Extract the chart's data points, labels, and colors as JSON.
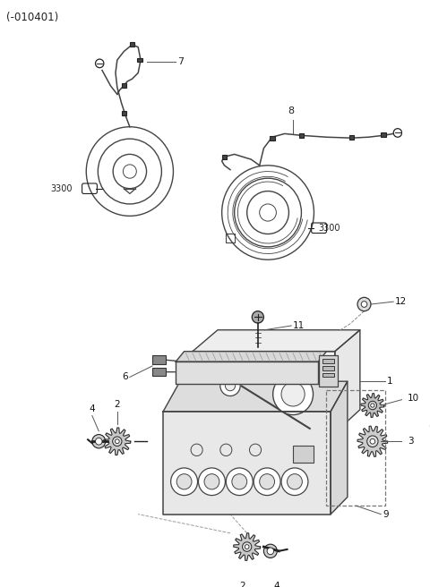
{
  "bg": "#ffffff",
  "lc": "#444444",
  "dc": "#222222",
  "title": "(-010401)",
  "figsize": [
    4.8,
    6.56
  ],
  "dpi": 100
}
